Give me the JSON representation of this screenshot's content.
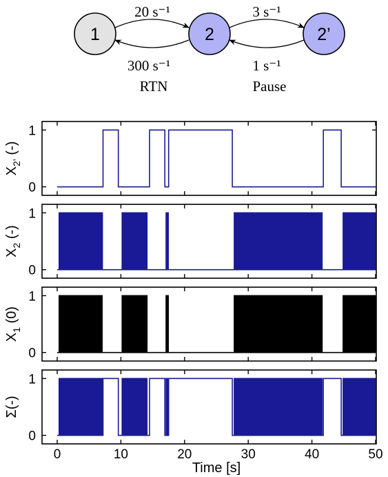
{
  "diagram": {
    "states": [
      {
        "label": "1",
        "color": "#e3e3e3"
      },
      {
        "label": "2",
        "color": "#b1b1f5"
      },
      {
        "label": "2’",
        "color": "#b1b1f5"
      }
    ],
    "rates": {
      "r12": "20 s⁻¹",
      "r21": "300 s⁻¹",
      "r22p": "3 s⁻¹",
      "r2p2": "1 s⁻¹"
    },
    "names": {
      "rtn": "RTN",
      "pause": "Pause"
    }
  },
  "chart_data": {
    "type": "line",
    "subtype": "step",
    "xlabel": "Time  [s]",
    "xlim": [
      0,
      50
    ],
    "xticks": [
      0,
      10,
      20,
      30,
      40,
      50
    ],
    "grid": false,
    "colors": {
      "blue": "#1a1a96",
      "black": "#000000"
    },
    "panels": [
      {
        "ylabel_main": "X",
        "ylabel_sub": "2’",
        "ylabel_suffix": "(-)",
        "color": "#1a1a96",
        "ylim": [
          -0.15,
          1.15
        ],
        "yticks": [
          0,
          1
        ],
        "segments": [
          [
            0,
            0
          ],
          [
            7.2,
            1
          ],
          [
            9.6,
            0
          ],
          [
            14.5,
            1
          ],
          [
            16.9,
            0
          ],
          [
            17.5,
            1
          ],
          [
            27.5,
            0
          ],
          [
            41.8,
            1
          ],
          [
            44.6,
            0
          ],
          [
            50,
            0
          ]
        ]
      },
      {
        "ylabel_main": "X",
        "ylabel_sub": "2",
        "ylabel_suffix": "(-)",
        "color": "#1a1a96",
        "ylim": [
          -0.15,
          1.15
        ],
        "yticks": [
          0,
          1
        ],
        "dense_ranges": [
          [
            0.3,
            7.1
          ],
          [
            10.2,
            14.1
          ],
          [
            17.1,
            17.45
          ],
          [
            27.8,
            41.6
          ],
          [
            44.9,
            50
          ]
        ],
        "baseline_ranges": [
          [
            0,
            0.3
          ],
          [
            7.1,
            7.2
          ],
          [
            9.6,
            10.2
          ],
          [
            14.1,
            14.5
          ],
          [
            16.9,
            17.1
          ],
          [
            41.6,
            41.8
          ],
          [
            44.6,
            44.9
          ]
        ],
        "high_ranges": [
          [
            7.2,
            9.6
          ],
          [
            14.5,
            16.9
          ],
          [
            17.5,
            27.5
          ],
          [
            41.8,
            44.6
          ]
        ],
        "high_level": 0
      },
      {
        "ylabel_main": "X",
        "ylabel_sub": "1",
        "ylabel_suffix": "(0)",
        "color": "#000000",
        "ylim": [
          -0.15,
          1.15
        ],
        "yticks": [
          0,
          1
        ],
        "dense_ranges": [
          [
            0.3,
            7.1
          ],
          [
            10.2,
            14.1
          ],
          [
            17.1,
            17.45
          ],
          [
            27.8,
            41.6
          ],
          [
            44.9,
            50
          ]
        ],
        "baseline_ranges": [
          [
            0,
            0.3
          ],
          [
            7.1,
            7.2
          ],
          [
            9.6,
            10.2
          ],
          [
            14.1,
            14.5
          ],
          [
            16.9,
            17.1
          ],
          [
            41.6,
            41.8
          ],
          [
            44.6,
            44.9
          ]
        ],
        "high_ranges": [
          [
            7.2,
            9.6
          ],
          [
            14.5,
            16.9
          ],
          [
            17.5,
            27.5
          ],
          [
            41.8,
            44.6
          ]
        ],
        "high_level": 0,
        "inverse": true
      },
      {
        "ylabel_main": "Σ",
        "ylabel_sub": "",
        "ylabel_suffix": "(-)",
        "color": "#1a1a96",
        "ylim": [
          -0.15,
          1.15
        ],
        "yticks": [
          0,
          1
        ],
        "dense_ranges": [
          [
            0.3,
            7.1
          ],
          [
            10.2,
            14.1
          ],
          [
            17.1,
            17.45
          ],
          [
            27.8,
            41.6
          ],
          [
            44.9,
            50
          ]
        ],
        "baseline_ranges": [
          [
            0,
            0.3
          ],
          [
            7.1,
            7.2
          ],
          [
            9.6,
            10.2
          ],
          [
            14.1,
            14.5
          ],
          [
            16.9,
            17.1
          ],
          [
            41.6,
            41.8
          ],
          [
            44.6,
            44.9
          ]
        ],
        "high_ranges": [
          [
            7.2,
            9.6
          ],
          [
            14.5,
            16.9
          ],
          [
            17.5,
            27.5
          ],
          [
            41.8,
            44.6
          ]
        ],
        "high_level": 1
      }
    ]
  }
}
